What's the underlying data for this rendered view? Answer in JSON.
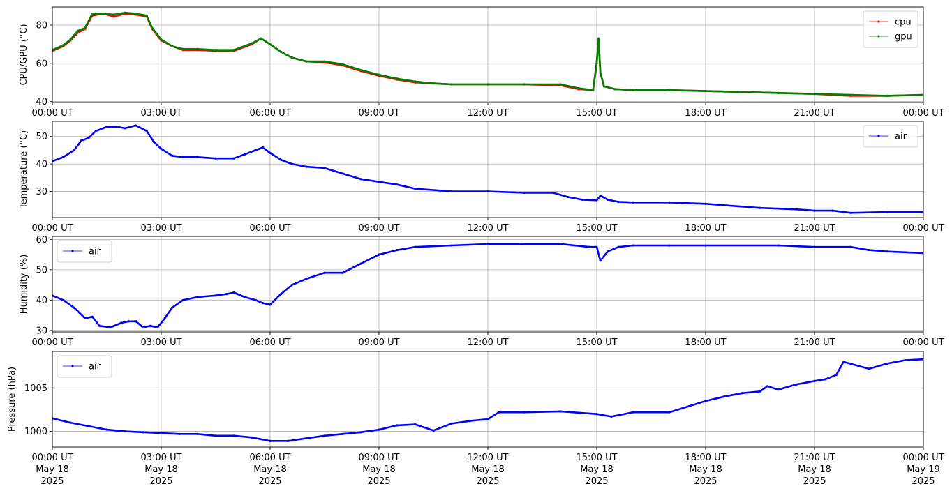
{
  "x_ticks": [
    "00:00 UT",
    "03:00 UT",
    "06:00 UT",
    "09:00 UT",
    "12:00 UT",
    "15:00 UT",
    "18:00 UT",
    "21:00 UT",
    "00:00 UT"
  ],
  "x_tick_dates": [
    "May 18",
    "May 18",
    "May 18",
    "May 18",
    "May 18",
    "May 18",
    "May 18",
    "May 18",
    "May 19"
  ],
  "x_tick_year": "2025",
  "chart_data": [
    {
      "type": "line",
      "ylabel": "CPU/GPU (°C)",
      "xlim": [
        "2025-05-18 00:00",
        "2025-05-19 00:00"
      ],
      "ylim": [
        39.5,
        89.5
      ],
      "yticks": [
        40,
        60,
        80
      ],
      "grid": true,
      "legend": "top-right",
      "x_hours": [
        0,
        0.3,
        0.5,
        0.7,
        0.9,
        1.1,
        1.4,
        1.7,
        2.0,
        2.3,
        2.6,
        2.75,
        3.0,
        3.3,
        3.6,
        4.0,
        4.5,
        5.0,
        5.5,
        5.75,
        6.0,
        6.3,
        6.6,
        7.0,
        7.5,
        8.0,
        8.5,
        9.0,
        9.5,
        10.0,
        10.5,
        11.0,
        12.0,
        13.0,
        14.0,
        14.5,
        14.9,
        15.0,
        15.05,
        15.1,
        15.2,
        15.5,
        16.0,
        17.0,
        18.0,
        19.0,
        20.0,
        21.0,
        22.0,
        23.0,
        24.0
      ],
      "series": [
        {
          "name": "cpu",
          "color": "#ff0000",
          "values": [
            66.5,
            69,
            72,
            76,
            78,
            85,
            86,
            84.5,
            86,
            85.5,
            84.5,
            78,
            72,
            69,
            67,
            67,
            66.5,
            66.5,
            70,
            73,
            70,
            66,
            63,
            61,
            60.5,
            59,
            56,
            53.5,
            51.5,
            50,
            49.5,
            49,
            49,
            49,
            48.5,
            46.5,
            46,
            60,
            73,
            55,
            48,
            46.5,
            46,
            46,
            45.5,
            45,
            44.5,
            44,
            43,
            43,
            43.5
          ]
        },
        {
          "name": "gpu",
          "color": "#008000",
          "values": [
            67,
            69.5,
            72.5,
            77,
            78.5,
            86,
            86,
            85.5,
            86.5,
            86,
            85,
            78.5,
            72.5,
            69,
            67.5,
            67.5,
            67,
            67,
            70.5,
            73,
            70,
            66,
            63,
            61,
            61,
            59.5,
            56.5,
            54,
            52,
            50.5,
            49.5,
            49,
            49,
            49,
            49,
            47,
            46,
            61,
            73,
            55,
            48,
            46.5,
            46,
            46,
            45.5,
            45,
            44.5,
            44,
            43.5,
            43,
            43.5
          ]
        }
      ]
    },
    {
      "type": "line",
      "ylabel": "Temperature (°C)",
      "xlim": [
        "2025-05-18 00:00",
        "2025-05-19 00:00"
      ],
      "ylim": [
        20.5,
        55.5
      ],
      "yticks": [
        30,
        40,
        50
      ],
      "grid": true,
      "legend": "top-right",
      "x_hours": [
        0,
        0.3,
        0.6,
        0.8,
        1.0,
        1.2,
        1.5,
        1.8,
        2.0,
        2.3,
        2.6,
        2.8,
        3.0,
        3.3,
        3.6,
        4.0,
        4.5,
        5.0,
        5.3,
        5.6,
        5.8,
        6.0,
        6.3,
        6.6,
        7.0,
        7.5,
        8.0,
        8.5,
        9.0,
        9.5,
        10.0,
        11.0,
        12.0,
        13.0,
        13.8,
        14.2,
        14.6,
        15.0,
        15.1,
        15.3,
        15.6,
        16.0,
        17.0,
        18.0,
        18.5,
        19.5,
        20.5,
        21.0,
        21.5,
        22.0,
        23.0,
        24.0
      ],
      "series": [
        {
          "name": "air",
          "color": "#0000ff",
          "values": [
            41,
            42.5,
            45,
            48.5,
            49.5,
            52,
            53.5,
            53.5,
            53,
            54,
            52,
            48,
            45.5,
            43,
            42.5,
            42.5,
            42,
            42,
            43.5,
            45,
            46,
            44,
            41.5,
            40,
            39,
            38.5,
            36.5,
            34.5,
            33.5,
            32.5,
            31,
            30,
            30,
            29.5,
            29.5,
            28,
            27,
            26.8,
            28.5,
            27,
            26.2,
            26,
            26,
            25.5,
            25,
            24,
            23.5,
            23,
            23,
            22.2,
            22.5,
            22.5
          ]
        }
      ]
    },
    {
      "type": "line",
      "ylabel": "Humidity (%)",
      "xlim": [
        "2025-05-18 00:00",
        "2025-05-19 00:00"
      ],
      "ylim": [
        29.5,
        61.0
      ],
      "yticks": [
        30,
        40,
        50,
        60
      ],
      "grid": true,
      "legend": "top-left",
      "x_hours": [
        0,
        0.3,
        0.6,
        0.9,
        1.1,
        1.3,
        1.6,
        1.9,
        2.1,
        2.3,
        2.5,
        2.7,
        2.9,
        3.1,
        3.3,
        3.6,
        4.0,
        4.5,
        4.8,
        5.0,
        5.3,
        5.6,
        5.8,
        6.0,
        6.3,
        6.6,
        7.0,
        7.5,
        8.0,
        8.5,
        9.0,
        9.5,
        10.0,
        11.0,
        12.0,
        13.0,
        14.0,
        14.8,
        15.0,
        15.1,
        15.3,
        15.6,
        16.0,
        17.0,
        18.0,
        20.0,
        21.0,
        22.0,
        22.5,
        23.0,
        24.0
      ],
      "series": [
        {
          "name": "air",
          "color": "#0000ff",
          "values": [
            41.5,
            40,
            37.5,
            34,
            34.5,
            31.5,
            31,
            32.5,
            33,
            33,
            31,
            31.5,
            31,
            34,
            37.5,
            40,
            41,
            41.5,
            42,
            42.5,
            41,
            40,
            39,
            38.5,
            42,
            45,
            47,
            49,
            49,
            52,
            55,
            56.5,
            57.5,
            58,
            58.5,
            58.5,
            58.5,
            57.5,
            57.5,
            53,
            56,
            57.5,
            58,
            58,
            58,
            58,
            57.5,
            57.5,
            56.5,
            56,
            55.5
          ]
        }
      ]
    },
    {
      "type": "line",
      "ylabel": "Pressure (hPa)",
      "xlim": [
        "2025-05-18 00:00",
        "2025-05-19 00:00"
      ],
      "ylim": [
        998.2,
        1009.2
      ],
      "yticks": [
        1000,
        1005
      ],
      "grid": true,
      "legend": "top-left",
      "x_hours": [
        0,
        0.5,
        1.0,
        1.5,
        2.0,
        2.5,
        3.0,
        3.5,
        4.0,
        4.5,
        5.0,
        5.5,
        6.0,
        6.5,
        7.0,
        7.5,
        8.0,
        8.5,
        9.0,
        9.5,
        10.0,
        10.5,
        11.0,
        11.5,
        12.0,
        12.3,
        13.0,
        14.0,
        15.0,
        15.4,
        16.0,
        17.0,
        18.0,
        18.5,
        19.0,
        19.5,
        19.7,
        20.0,
        20.5,
        21.0,
        21.3,
        21.6,
        21.8,
        22.5,
        23.0,
        23.5,
        24.0
      ],
      "series": [
        {
          "name": "air",
          "color": "#0000ff",
          "values": [
            1001.5,
            1001.0,
            1000.6,
            1000.2,
            1000.0,
            999.9,
            999.8,
            999.7,
            999.7,
            999.5,
            999.5,
            999.3,
            998.9,
            998.9,
            999.2,
            999.5,
            999.7,
            999.9,
            1000.2,
            1000.7,
            1000.8,
            1000.1,
            1000.9,
            1001.2,
            1001.4,
            1002.2,
            1002.2,
            1002.3,
            1002.0,
            1001.7,
            1002.2,
            1002.2,
            1003.5,
            1004.0,
            1004.4,
            1004.6,
            1005.2,
            1004.8,
            1005.4,
            1005.8,
            1006.0,
            1006.5,
            1008.0,
            1007.2,
            1007.8,
            1008.2,
            1008.3
          ]
        }
      ]
    }
  ]
}
